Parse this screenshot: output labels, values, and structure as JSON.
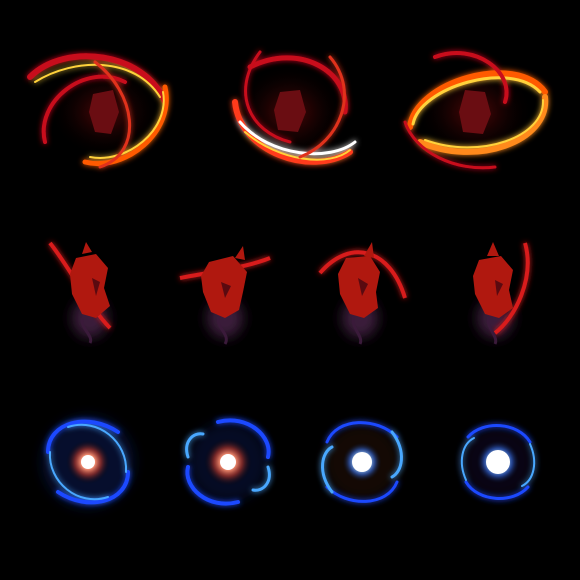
{
  "sprite_sheet": {
    "background_color": "#000000",
    "rows": [
      {
        "name": "fire-slash-swirl",
        "frame_count": 3,
        "colors": {
          "outer": "#c8101a",
          "mid": "#ff5a00",
          "core": "#ffd23a",
          "highlight": "#ffffff"
        },
        "frames": [
          "frame-1",
          "frame-2",
          "frame-3"
        ]
      },
      {
        "name": "demon-warrior",
        "frame_count": 4,
        "colors": {
          "body": "#b0180f",
          "shade": "#5a0a10",
          "blade": "#d81a1a",
          "smoke": "#3a1a3a"
        },
        "frames": [
          "frame-1",
          "frame-2",
          "frame-3",
          "frame-4"
        ]
      },
      {
        "name": "blue-energy-vortex",
        "frame_count": 4,
        "colors": {
          "outer": "#1a4aff",
          "mid": "#4aa8ff",
          "core": "#ffffff",
          "warm_core": "#ff7a5a"
        },
        "frames": [
          "frame-1",
          "frame-2",
          "frame-3",
          "frame-4"
        ]
      }
    ]
  }
}
